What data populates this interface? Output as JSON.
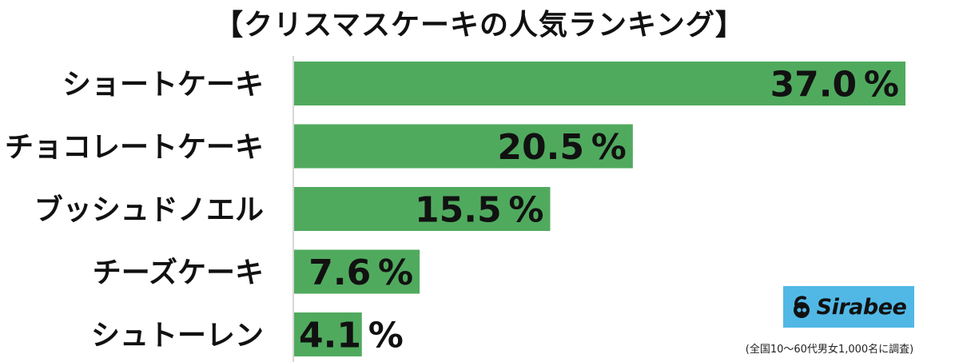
{
  "title": "【クリスマスケーキの人気ランキング】",
  "unit": "%",
  "colors": {
    "bar": "#50aa5e",
    "text": "#111111",
    "logo_bg": "#51b8e6"
  },
  "chart_data": {
    "type": "bar",
    "orientation": "horizontal",
    "title": "【クリスマスケーキの人気ランキング】",
    "categories": [
      "ショートケーキ",
      "チョコレートケーキ",
      "ブッシュドノエル",
      "チーズケーキ",
      "シュトーレン"
    ],
    "values": [
      37.0,
      20.5,
      15.5,
      7.6,
      4.1
    ],
    "value_labels": [
      "37.0",
      "20.5",
      "15.5",
      "7.6",
      "4.1"
    ],
    "xlim": [
      0,
      37.0
    ],
    "grid": false,
    "legend": "none"
  },
  "logo": {
    "text": "Sirabee",
    "icon": "sirabee-mascot-icon"
  },
  "source_note": "(全国10～60代男女1,000名に調査)"
}
